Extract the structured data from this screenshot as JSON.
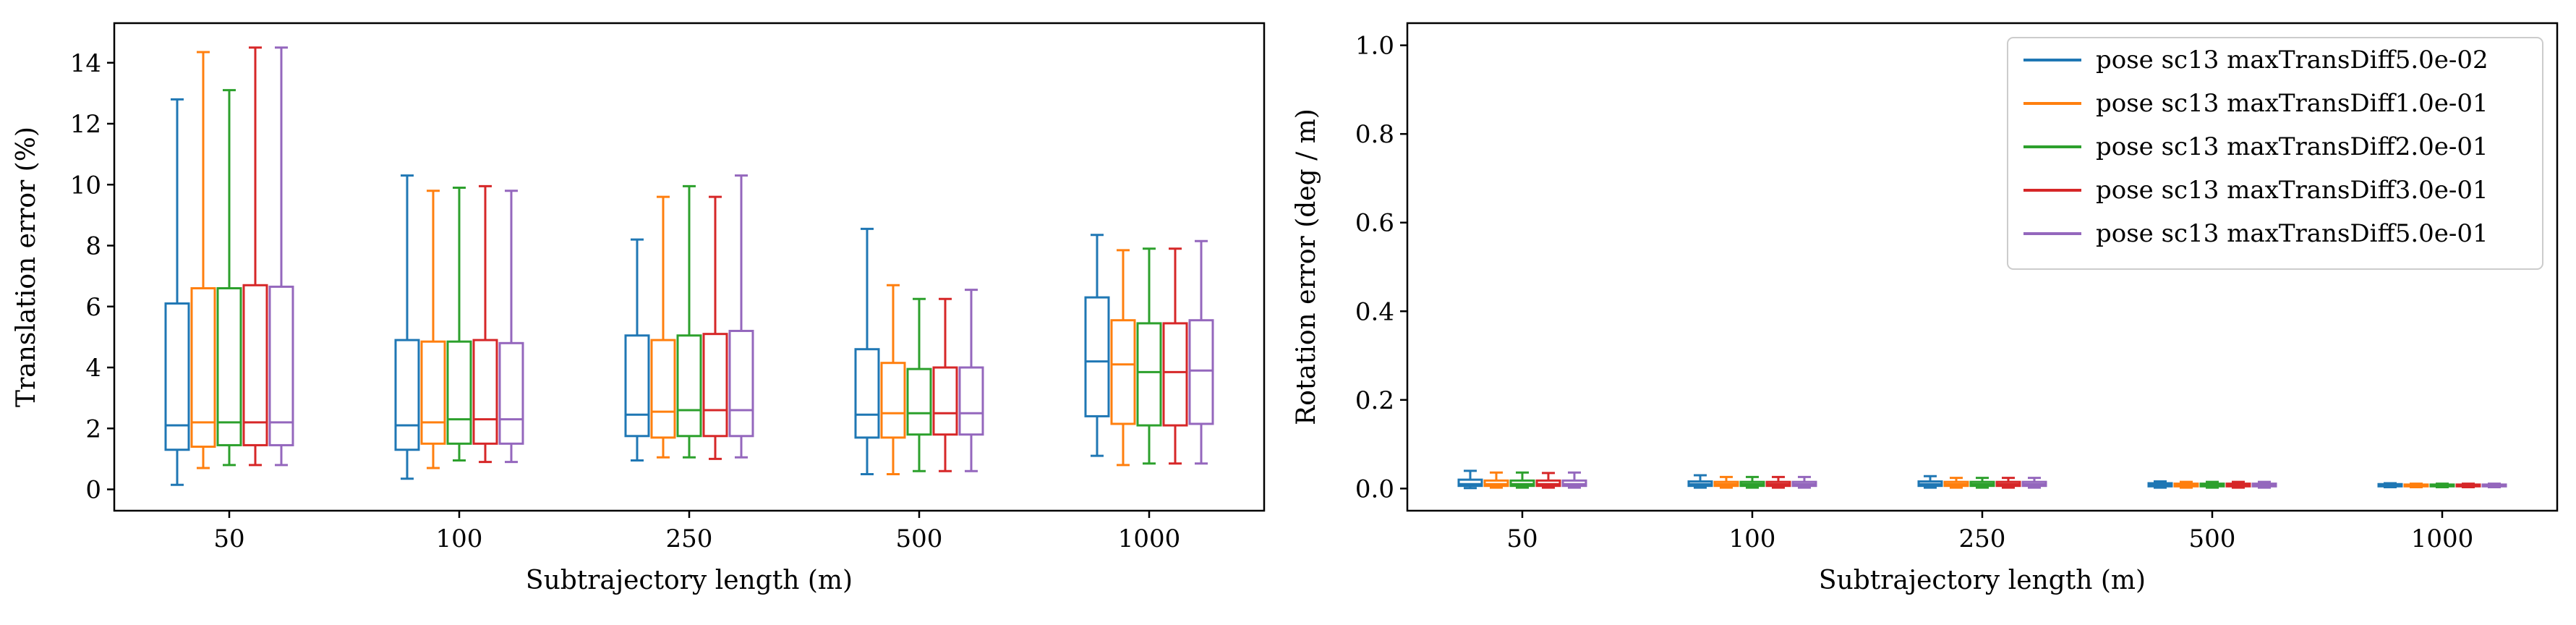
{
  "chart_data": [
    {
      "type": "box",
      "xlabel": "Subtrajectory length (m)",
      "ylabel": "Translation error (%)",
      "ylim": [
        -0.7,
        15.3
      ],
      "yticks": [
        0,
        2,
        4,
        6,
        8,
        10,
        12,
        14
      ],
      "categories": [
        "50",
        "100",
        "250",
        "500",
        "1000"
      ],
      "series": [
        {
          "name": "pose sc13 maxTransDiff5.0e-02",
          "color": "#1f77b4",
          "boxes": [
            {
              "whislo": 0.15,
              "q1": 1.3,
              "med": 2.1,
              "q3": 6.1,
              "whishi": 12.8
            },
            {
              "whislo": 0.35,
              "q1": 1.3,
              "med": 2.1,
              "q3": 4.9,
              "whishi": 10.3
            },
            {
              "whislo": 0.95,
              "q1": 1.75,
              "med": 2.45,
              "q3": 5.05,
              "whishi": 8.2
            },
            {
              "whislo": 0.5,
              "q1": 1.7,
              "med": 2.45,
              "q3": 4.6,
              "whishi": 8.55
            },
            {
              "whislo": 1.1,
              "q1": 2.4,
              "med": 4.2,
              "q3": 6.3,
              "whishi": 8.35
            }
          ]
        },
        {
          "name": "pose sc13 maxTransDiff1.0e-01",
          "color": "#ff7f0e",
          "boxes": [
            {
              "whislo": 0.7,
              "q1": 1.4,
              "med": 2.2,
              "q3": 6.6,
              "whishi": 14.35
            },
            {
              "whislo": 0.7,
              "q1": 1.5,
              "med": 2.2,
              "q3": 4.85,
              "whishi": 9.8
            },
            {
              "whislo": 1.05,
              "q1": 1.7,
              "med": 2.55,
              "q3": 4.9,
              "whishi": 9.6
            },
            {
              "whislo": 0.5,
              "q1": 1.7,
              "med": 2.5,
              "q3": 4.15,
              "whishi": 6.7
            },
            {
              "whislo": 0.8,
              "q1": 2.15,
              "med": 4.1,
              "q3": 5.55,
              "whishi": 7.85
            }
          ]
        },
        {
          "name": "pose sc13 maxTransDiff2.0e-01",
          "color": "#2ca02c",
          "boxes": [
            {
              "whislo": 0.8,
              "q1": 1.45,
              "med": 2.2,
              "q3": 6.6,
              "whishi": 13.1
            },
            {
              "whislo": 0.95,
              "q1": 1.5,
              "med": 2.3,
              "q3": 4.85,
              "whishi": 9.9
            },
            {
              "whislo": 1.05,
              "q1": 1.75,
              "med": 2.6,
              "q3": 5.05,
              "whishi": 9.95
            },
            {
              "whislo": 0.6,
              "q1": 1.8,
              "med": 2.5,
              "q3": 3.95,
              "whishi": 6.25
            },
            {
              "whislo": 0.85,
              "q1": 2.1,
              "med": 3.85,
              "q3": 5.45,
              "whishi": 7.9
            }
          ]
        },
        {
          "name": "pose sc13 maxTransDiff3.0e-01",
          "color": "#d62728",
          "boxes": [
            {
              "whislo": 0.8,
              "q1": 1.45,
              "med": 2.2,
              "q3": 6.7,
              "whishi": 14.5
            },
            {
              "whislo": 0.9,
              "q1": 1.5,
              "med": 2.3,
              "q3": 4.9,
              "whishi": 9.95
            },
            {
              "whislo": 1.0,
              "q1": 1.75,
              "med": 2.6,
              "q3": 5.1,
              "whishi": 9.6
            },
            {
              "whislo": 0.6,
              "q1": 1.8,
              "med": 2.5,
              "q3": 4.0,
              "whishi": 6.25
            },
            {
              "whislo": 0.85,
              "q1": 2.1,
              "med": 3.85,
              "q3": 5.45,
              "whishi": 7.9
            }
          ]
        },
        {
          "name": "pose sc13 maxTransDiff5.0e-01",
          "color": "#9467bd",
          "boxes": [
            {
              "whislo": 0.8,
              "q1": 1.45,
              "med": 2.2,
              "q3": 6.65,
              "whishi": 14.5
            },
            {
              "whislo": 0.9,
              "q1": 1.5,
              "med": 2.3,
              "q3": 4.8,
              "whishi": 9.8
            },
            {
              "whislo": 1.05,
              "q1": 1.75,
              "med": 2.6,
              "q3": 5.2,
              "whishi": 10.3
            },
            {
              "whislo": 0.6,
              "q1": 1.8,
              "med": 2.5,
              "q3": 4.0,
              "whishi": 6.55
            },
            {
              "whislo": 0.85,
              "q1": 2.15,
              "med": 3.9,
              "q3": 5.55,
              "whishi": 8.15
            }
          ]
        }
      ]
    },
    {
      "type": "box",
      "xlabel": "Subtrajectory length (m)",
      "ylabel": "Rotation error (deg / m)",
      "ylim": [
        -0.05,
        1.05
      ],
      "yticks": [
        "0.0",
        "0.2",
        "0.4",
        "0.6",
        "0.8",
        "1.0"
      ],
      "categories": [
        "50",
        "100",
        "250",
        "500",
        "1000"
      ],
      "legend_position": "upper right",
      "series": [
        {
          "name": "pose sc13 maxTransDiff5.0e-02",
          "color": "#1f77b4",
          "boxes": [
            {
              "whislo": 0.001,
              "q1": 0.006,
              "med": 0.01,
              "q3": 0.02,
              "whishi": 0.04
            },
            {
              "whislo": 0.002,
              "q1": 0.006,
              "med": 0.01,
              "q3": 0.016,
              "whishi": 0.03
            },
            {
              "whislo": 0.002,
              "q1": 0.006,
              "med": 0.01,
              "q3": 0.016,
              "whishi": 0.028
            },
            {
              "whislo": 0.002,
              "q1": 0.005,
              "med": 0.008,
              "q3": 0.012,
              "whishi": 0.016
            },
            {
              "whislo": 0.003,
              "q1": 0.005,
              "med": 0.007,
              "q3": 0.01,
              "whishi": 0.012
            }
          ]
        },
        {
          "name": "pose sc13 maxTransDiff1.0e-01",
          "color": "#ff7f0e",
          "boxes": [
            {
              "whislo": 0.002,
              "q1": 0.006,
              "med": 0.01,
              "q3": 0.018,
              "whishi": 0.036
            },
            {
              "whislo": 0.002,
              "q1": 0.006,
              "med": 0.01,
              "q3": 0.015,
              "whishi": 0.026
            },
            {
              "whislo": 0.002,
              "q1": 0.006,
              "med": 0.01,
              "q3": 0.015,
              "whishi": 0.024
            },
            {
              "whislo": 0.002,
              "q1": 0.005,
              "med": 0.008,
              "q3": 0.011,
              "whishi": 0.015
            },
            {
              "whislo": 0.003,
              "q1": 0.005,
              "med": 0.007,
              "q3": 0.009,
              "whishi": 0.011
            }
          ]
        },
        {
          "name": "pose sc13 maxTransDiff2.0e-01",
          "color": "#2ca02c",
          "boxes": [
            {
              "whislo": 0.002,
              "q1": 0.006,
              "med": 0.01,
              "q3": 0.018,
              "whishi": 0.036
            },
            {
              "whislo": 0.002,
              "q1": 0.006,
              "med": 0.01,
              "q3": 0.015,
              "whishi": 0.026
            },
            {
              "whislo": 0.002,
              "q1": 0.006,
              "med": 0.01,
              "q3": 0.015,
              "whishi": 0.024
            },
            {
              "whislo": 0.002,
              "q1": 0.005,
              "med": 0.008,
              "q3": 0.011,
              "whishi": 0.015
            },
            {
              "whislo": 0.003,
              "q1": 0.005,
              "med": 0.007,
              "q3": 0.009,
              "whishi": 0.011
            }
          ]
        },
        {
          "name": "pose sc13 maxTransDiff3.0e-01",
          "color": "#d62728",
          "boxes": [
            {
              "whislo": 0.002,
              "q1": 0.006,
              "med": 0.01,
              "q3": 0.018,
              "whishi": 0.035
            },
            {
              "whislo": 0.002,
              "q1": 0.006,
              "med": 0.01,
              "q3": 0.015,
              "whishi": 0.026
            },
            {
              "whislo": 0.002,
              "q1": 0.006,
              "med": 0.01,
              "q3": 0.015,
              "whishi": 0.024
            },
            {
              "whislo": 0.002,
              "q1": 0.005,
              "med": 0.008,
              "q3": 0.011,
              "whishi": 0.015
            },
            {
              "whislo": 0.003,
              "q1": 0.005,
              "med": 0.007,
              "q3": 0.009,
              "whishi": 0.011
            }
          ]
        },
        {
          "name": "pose sc13 maxTransDiff5.0e-01",
          "color": "#9467bd",
          "boxes": [
            {
              "whislo": 0.002,
              "q1": 0.006,
              "med": 0.01,
              "q3": 0.018,
              "whishi": 0.036
            },
            {
              "whislo": 0.002,
              "q1": 0.006,
              "med": 0.01,
              "q3": 0.015,
              "whishi": 0.026
            },
            {
              "whislo": 0.002,
              "q1": 0.006,
              "med": 0.01,
              "q3": 0.015,
              "whishi": 0.024
            },
            {
              "whislo": 0.002,
              "q1": 0.005,
              "med": 0.008,
              "q3": 0.011,
              "whishi": 0.015
            },
            {
              "whislo": 0.003,
              "q1": 0.005,
              "med": 0.007,
              "q3": 0.009,
              "whishi": 0.011
            }
          ]
        }
      ]
    }
  ]
}
